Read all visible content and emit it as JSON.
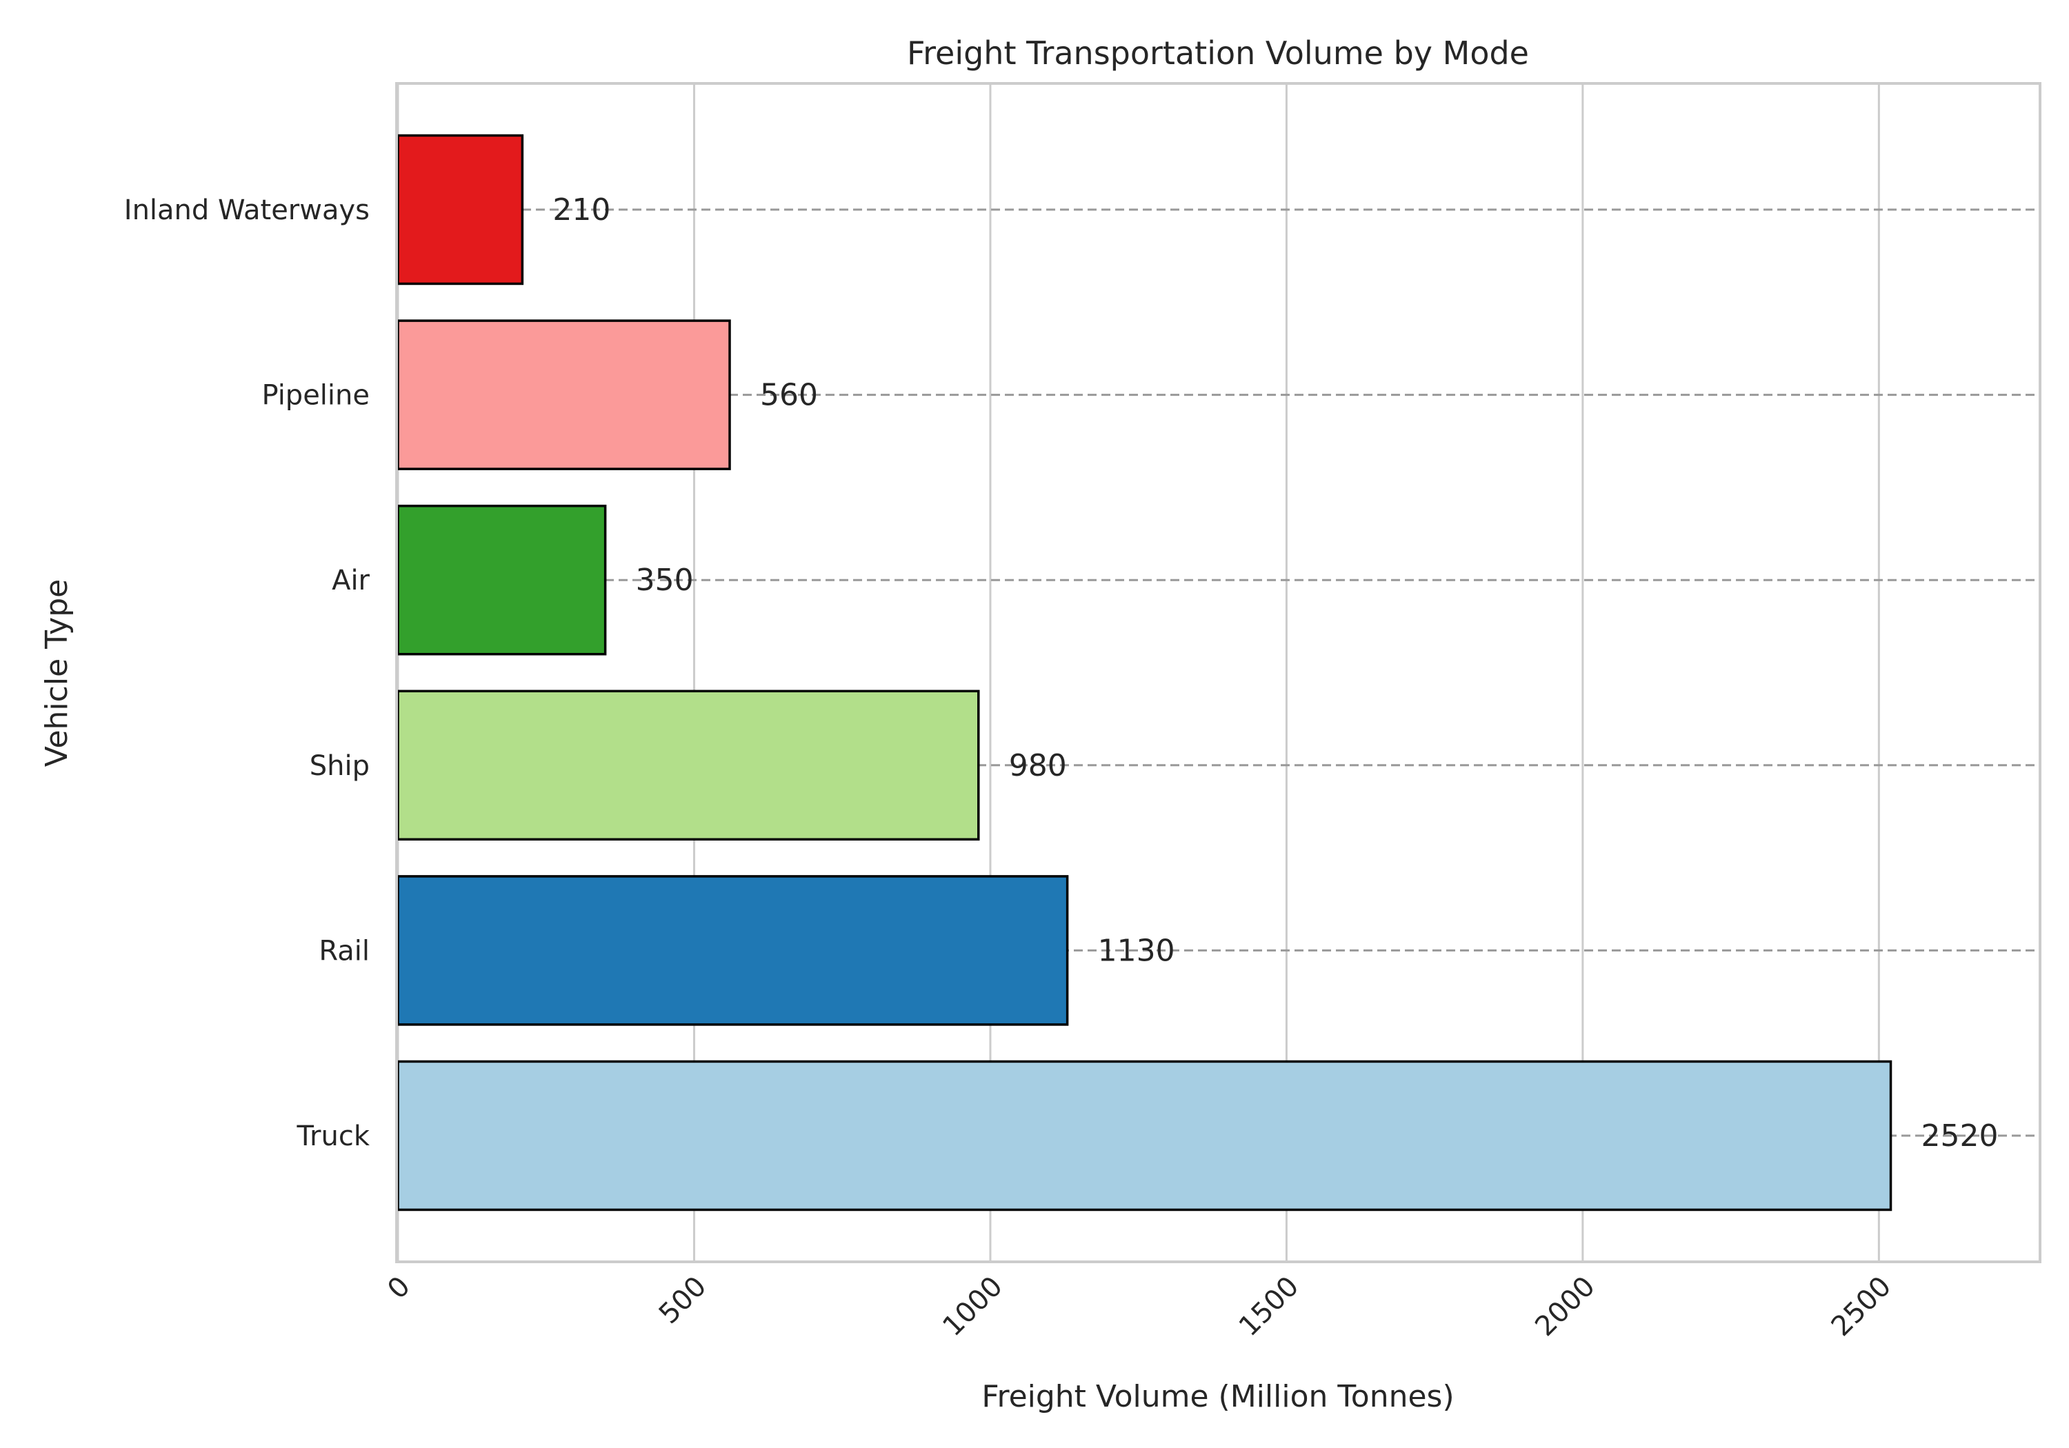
{
  "chart_data": {
    "type": "bar",
    "orientation": "horizontal",
    "title": "Freight Transportation Volume by Mode",
    "xlabel": "Freight Volume (Million Tonnes)",
    "ylabel": "Vehicle Type",
    "categories": [
      "Truck",
      "Rail",
      "Ship",
      "Air",
      "Pipeline",
      "Inland Waterways"
    ],
    "values": [
      2520,
      1130,
      980,
      350,
      560,
      210
    ],
    "data_labels": [
      "2520",
      "1130",
      "980",
      "350",
      "560",
      "210"
    ],
    "colors": [
      "#a6cee3",
      "#1f78b4",
      "#b2df8a",
      "#33a02c",
      "#fb9a99",
      "#e31a1c"
    ],
    "xlim": [
      0,
      2772
    ],
    "xticks": [
      0,
      500,
      1000,
      1500,
      2000,
      2500
    ],
    "xtick_labels": [
      "0",
      "500",
      "1000",
      "1500",
      "2000",
      "2500"
    ],
    "xtick_rotation": 45,
    "grid": "vertical solid; horizontal dashed at bars",
    "legend": "none"
  }
}
